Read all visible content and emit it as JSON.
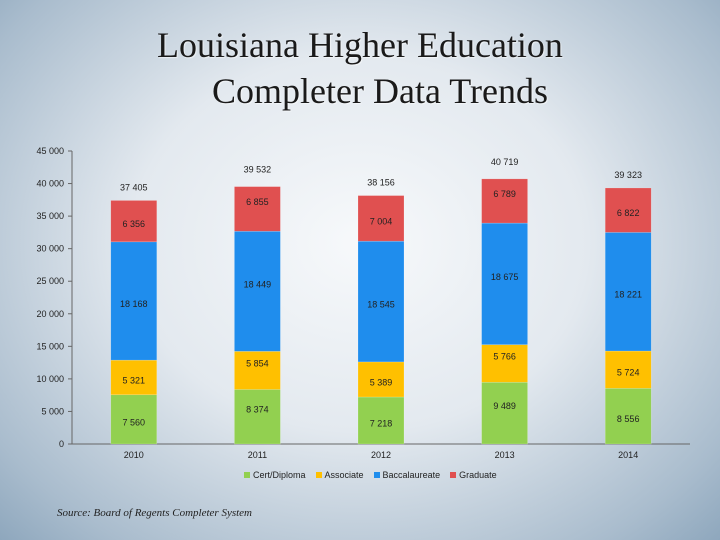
{
  "title_line1": "Louisiana Higher Education",
  "title_line2": "Completer Data Trends",
  "source": "Source: Board of Regents Completer System",
  "colors": {
    "cert": "#92d050",
    "associate": "#ffc000",
    "baccalaureate": "#1f8ded",
    "graduate": "#e05050"
  },
  "chart_data": {
    "type": "bar",
    "stacked": true,
    "categories": [
      "2010",
      "2011",
      "2012",
      "2013",
      "2014"
    ],
    "ylim": [
      0,
      45000
    ],
    "yticks": [
      0,
      5000,
      10000,
      15000,
      20000,
      25000,
      30000,
      35000,
      40000,
      45000
    ],
    "ytick_labels": [
      "0",
      "5 000",
      "10 000",
      "15 000",
      "20 000",
      "25 000",
      "30 000",
      "35 000",
      "40 000",
      "45 000"
    ],
    "legend_position": "bottom",
    "series": [
      {
        "name": "Cert/Diploma",
        "color_key": "cert",
        "values": [
          7560,
          8374,
          7218,
          9489,
          8556
        ],
        "labels": [
          "7 560",
          "8 374",
          "7 218",
          "9 489",
          "8 556"
        ]
      },
      {
        "name": "Associate",
        "color_key": "associate",
        "values": [
          5321,
          5854,
          5389,
          5766,
          5724
        ],
        "labels": [
          "5 321",
          "5 854",
          "5 389",
          "5 766",
          "5 724"
        ]
      },
      {
        "name": "Baccalaureate",
        "color_key": "baccalaureate",
        "values": [
          18168,
          18449,
          18545,
          18675,
          18221
        ],
        "labels": [
          "18 168",
          "18 449",
          "18 545",
          "18 675",
          "18 221"
        ]
      },
      {
        "name": "Graduate",
        "color_key": "graduate",
        "values": [
          6356,
          6855,
          7004,
          6789,
          6822
        ],
        "labels": [
          "6 356",
          "6 855",
          "7 004",
          "6 789",
          "6 822"
        ]
      }
    ],
    "totals": [
      37405,
      39532,
      38156,
      40719,
      39323
    ],
    "total_labels": [
      "37 405",
      "39 532",
      "38 156",
      "40 719",
      "39 323"
    ]
  }
}
